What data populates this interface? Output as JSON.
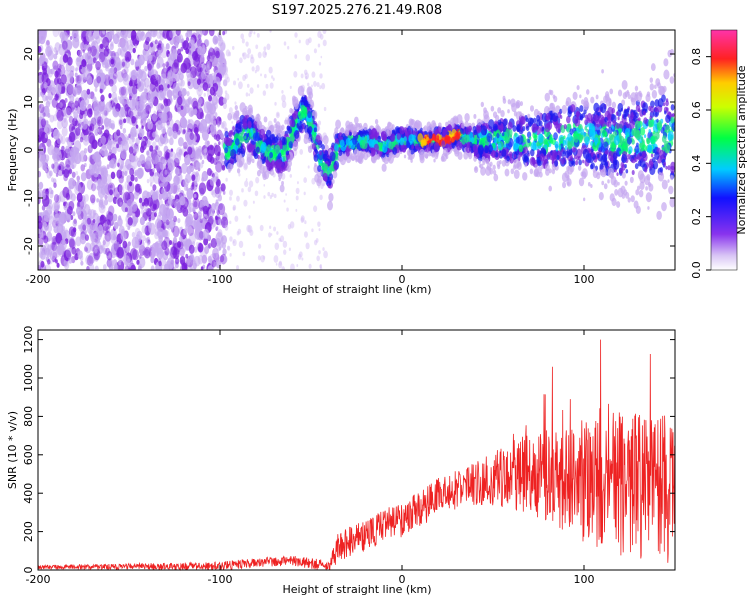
{
  "title": "S197.2025.276.21.49.R08",
  "colors": {
    "snr_line": "#ee2222",
    "dense_purple": "#7722dd",
    "light_purple": "#c9a8f0",
    "axis": "#000000"
  },
  "chart_data": [
    {
      "type": "heatmap",
      "title": "S197.2025.276.21.49.R08",
      "xlabel": "Height of straight line (km)",
      "ylabel": "Frequency (Hz)",
      "xlim": [
        -200,
        150
      ],
      "ylim": [
        -25,
        25
      ],
      "xticks": [
        -200,
        -100,
        0,
        100
      ],
      "yticks": [
        -20,
        -10,
        0,
        10,
        20
      ],
      "tick_labels_x": [
        "-200",
        "-100",
        "0",
        "100"
      ],
      "tick_labels_y": [
        "-20",
        "-10",
        "0",
        "10",
        "20"
      ],
      "ridge": {
        "description": "main spectral ridge",
        "points": [
          [
            -95,
            0
          ],
          [
            -85,
            4
          ],
          [
            -75,
            0
          ],
          [
            -65,
            -1
          ],
          [
            -55,
            8
          ],
          [
            -50,
            6
          ],
          [
            -45,
            -2
          ],
          [
            -40,
            -5
          ],
          [
            -35,
            1
          ],
          [
            -20,
            2
          ],
          [
            -10,
            1
          ],
          [
            0,
            2
          ],
          [
            10,
            2
          ],
          [
            20,
            2
          ],
          [
            30,
            3
          ],
          [
            40,
            2
          ],
          [
            60,
            2
          ],
          [
            80,
            2
          ],
          [
            100,
            3
          ],
          [
            120,
            2
          ],
          [
            140,
            3
          ],
          [
            150,
            3
          ]
        ],
        "peak_range": [
          10,
          30
        ]
      },
      "colorbar": {
        "label": "Normalized spectral amplitude",
        "range": [
          0.0,
          0.9
        ],
        "ticks": [
          0.0,
          0.2,
          0.4,
          0.6,
          0.8
        ],
        "tick_labels": [
          "0.0",
          "0.2",
          "0.4",
          "0.6",
          "0.8"
        ]
      }
    },
    {
      "type": "line",
      "xlabel": "Height of straight line (km)",
      "ylabel": "SNR (10 * v/v)",
      "xlim": [
        -200,
        150
      ],
      "ylim": [
        0,
        1250
      ],
      "xticks": [
        -200,
        -100,
        0,
        100
      ],
      "yticks": [
        0,
        200,
        400,
        600,
        800,
        1000,
        1200
      ],
      "tick_labels_x": [
        "-200",
        "-100",
        "0",
        "100"
      ],
      "tick_labels_y": [
        "0",
        "200",
        "400",
        "600",
        "800",
        "1000",
        "1200"
      ],
      "envelope_x": [
        -200,
        -100,
        -80,
        -60,
        -40,
        -35,
        -20,
        -10,
        0,
        10,
        20,
        30,
        40,
        50,
        60,
        70,
        80,
        90,
        100,
        110,
        120,
        130,
        140,
        150
      ],
      "envelope_y": [
        15,
        20,
        40,
        50,
        20,
        120,
        180,
        230,
        260,
        320,
        380,
        420,
        450,
        470,
        490,
        500,
        490,
        470,
        470,
        460,
        450,
        430,
        420,
        410
      ],
      "noise_amplitude_x": [
        -200,
        -40,
        -35,
        0,
        40,
        80,
        100,
        120,
        150
      ],
      "noise_amplitude_y": [
        10,
        30,
        80,
        90,
        110,
        250,
        330,
        380,
        400
      ]
    }
  ]
}
